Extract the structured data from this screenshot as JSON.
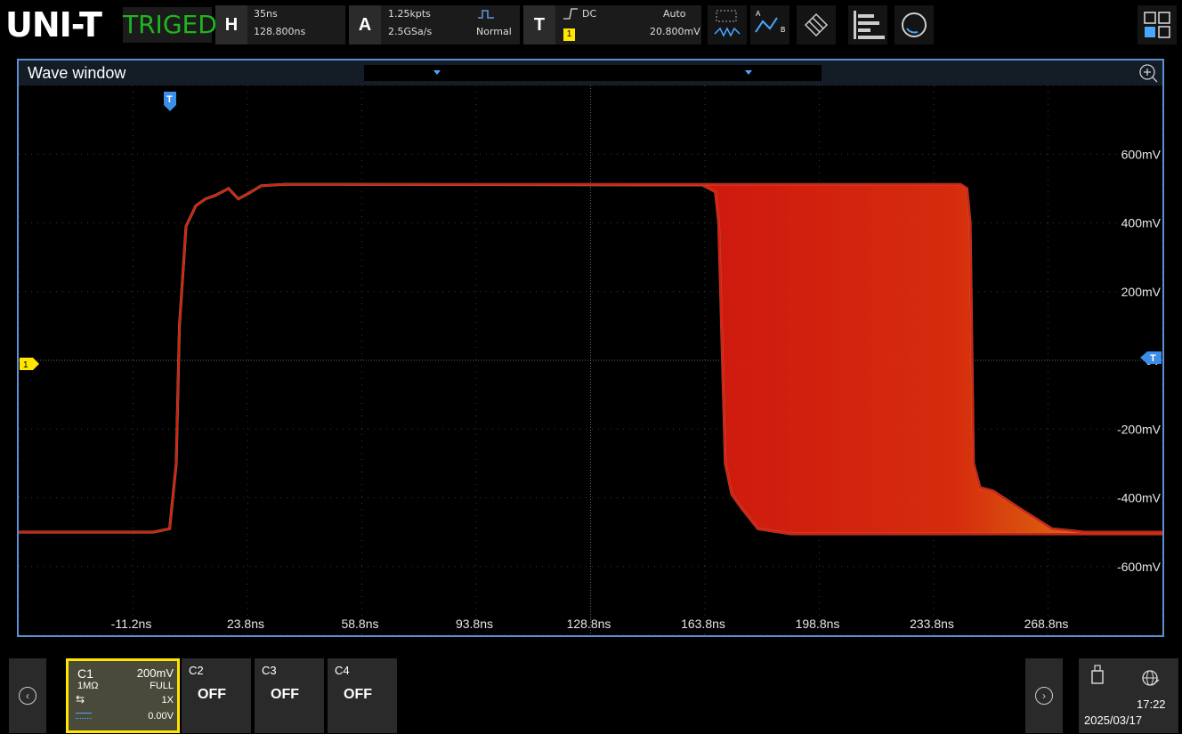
{
  "header": {
    "logo": "UNI-T",
    "trigger_state": "TRIGED",
    "horizontal": {
      "key": "H",
      "scale": "35ns",
      "delay": "128.800ns"
    },
    "acquire": {
      "key": "A",
      "points": "1.25kpts",
      "rate": "2.5GSa/s",
      "mode": "Normal"
    },
    "trigger": {
      "key": "T",
      "coupling": "DC",
      "source": "1",
      "sweep": "Auto",
      "level": "20.800mV"
    },
    "tools": [
      "measure-icon",
      "cursor-icon",
      "math-icon",
      "menu-list-icon",
      "search-icon"
    ],
    "grid_icon": "layout-grid-icon"
  },
  "wave_window": {
    "title": "Wave window",
    "trigger_marker": "T",
    "channel_marker": "1",
    "zoom_icon": "zoom-in-icon"
  },
  "chart_data": {
    "type": "line",
    "title": "",
    "xlabel": "",
    "ylabel": "",
    "x_tick_labels": [
      "-11.2ns",
      "23.8ns",
      "58.8ns",
      "93.8ns",
      "128.8ns",
      "163.8ns",
      "198.8ns",
      "233.8ns",
      "268.8ns"
    ],
    "y_tick_labels": [
      "600mV",
      "400mV",
      "200mV",
      "0V",
      "-200mV",
      "-400mV",
      "-600mV"
    ],
    "xlim_ns": [
      -46.2,
      303.8
    ],
    "ylim_mV": [
      -800,
      800
    ],
    "grid": true,
    "colors": {
      "trace": "#e01b10",
      "persistence_hot": "#ff9a00",
      "edge": "#44d18a"
    },
    "series": [
      {
        "points": [
          [
            -46.2,
            -500
          ],
          [
            -5,
            -500
          ],
          [
            0,
            -490
          ],
          [
            2,
            -300
          ],
          [
            3,
            100
          ],
          [
            5,
            390
          ],
          [
            8,
            450
          ],
          [
            11,
            470
          ],
          [
            14,
            480
          ],
          [
            18,
            500
          ],
          [
            21,
            470
          ],
          [
            24,
            485
          ],
          [
            28,
            508
          ],
          [
            35,
            512
          ],
          [
            50,
            512
          ],
          [
            163,
            510
          ],
          [
            167,
            490
          ],
          [
            168,
            400
          ],
          [
            170,
            -300
          ],
          [
            172,
            -390
          ],
          [
            175,
            -430
          ],
          [
            180,
            -490
          ],
          [
            190,
            -505
          ],
          [
            303.8,
            -505
          ]
        ]
      },
      {
        "points": [
          [
            -46.2,
            -500
          ],
          [
            -5,
            -500
          ],
          [
            0,
            -490
          ],
          [
            2,
            -300
          ],
          [
            3,
            100
          ],
          [
            5,
            390
          ],
          [
            8,
            450
          ],
          [
            11,
            470
          ],
          [
            14,
            480
          ],
          [
            18,
            500
          ],
          [
            21,
            470
          ],
          [
            24,
            485
          ],
          [
            28,
            508
          ],
          [
            35,
            512
          ],
          [
            50,
            512
          ],
          [
            242,
            512
          ],
          [
            244,
            500
          ],
          [
            245,
            400
          ],
          [
            246,
            -300
          ],
          [
            248,
            -370
          ],
          [
            252,
            -380
          ],
          [
            260,
            -430
          ],
          [
            270,
            -490
          ],
          [
            280,
            -500
          ],
          [
            303.8,
            -500
          ]
        ]
      }
    ]
  },
  "channels": [
    {
      "name": "C1",
      "scale": "200mV",
      "impedance": "1MΩ",
      "bandwidth": "FULL",
      "probe": "1X",
      "offset": "0.00V",
      "color": "#ffe600"
    },
    {
      "name": "C2",
      "state": "OFF"
    },
    {
      "name": "C3",
      "state": "OFF"
    },
    {
      "name": "C4",
      "state": "OFF"
    }
  ],
  "status": {
    "time": "17:22",
    "date": "2025/03/17",
    "usb_icon": "usb-icon",
    "network_icon": "network-icon"
  }
}
